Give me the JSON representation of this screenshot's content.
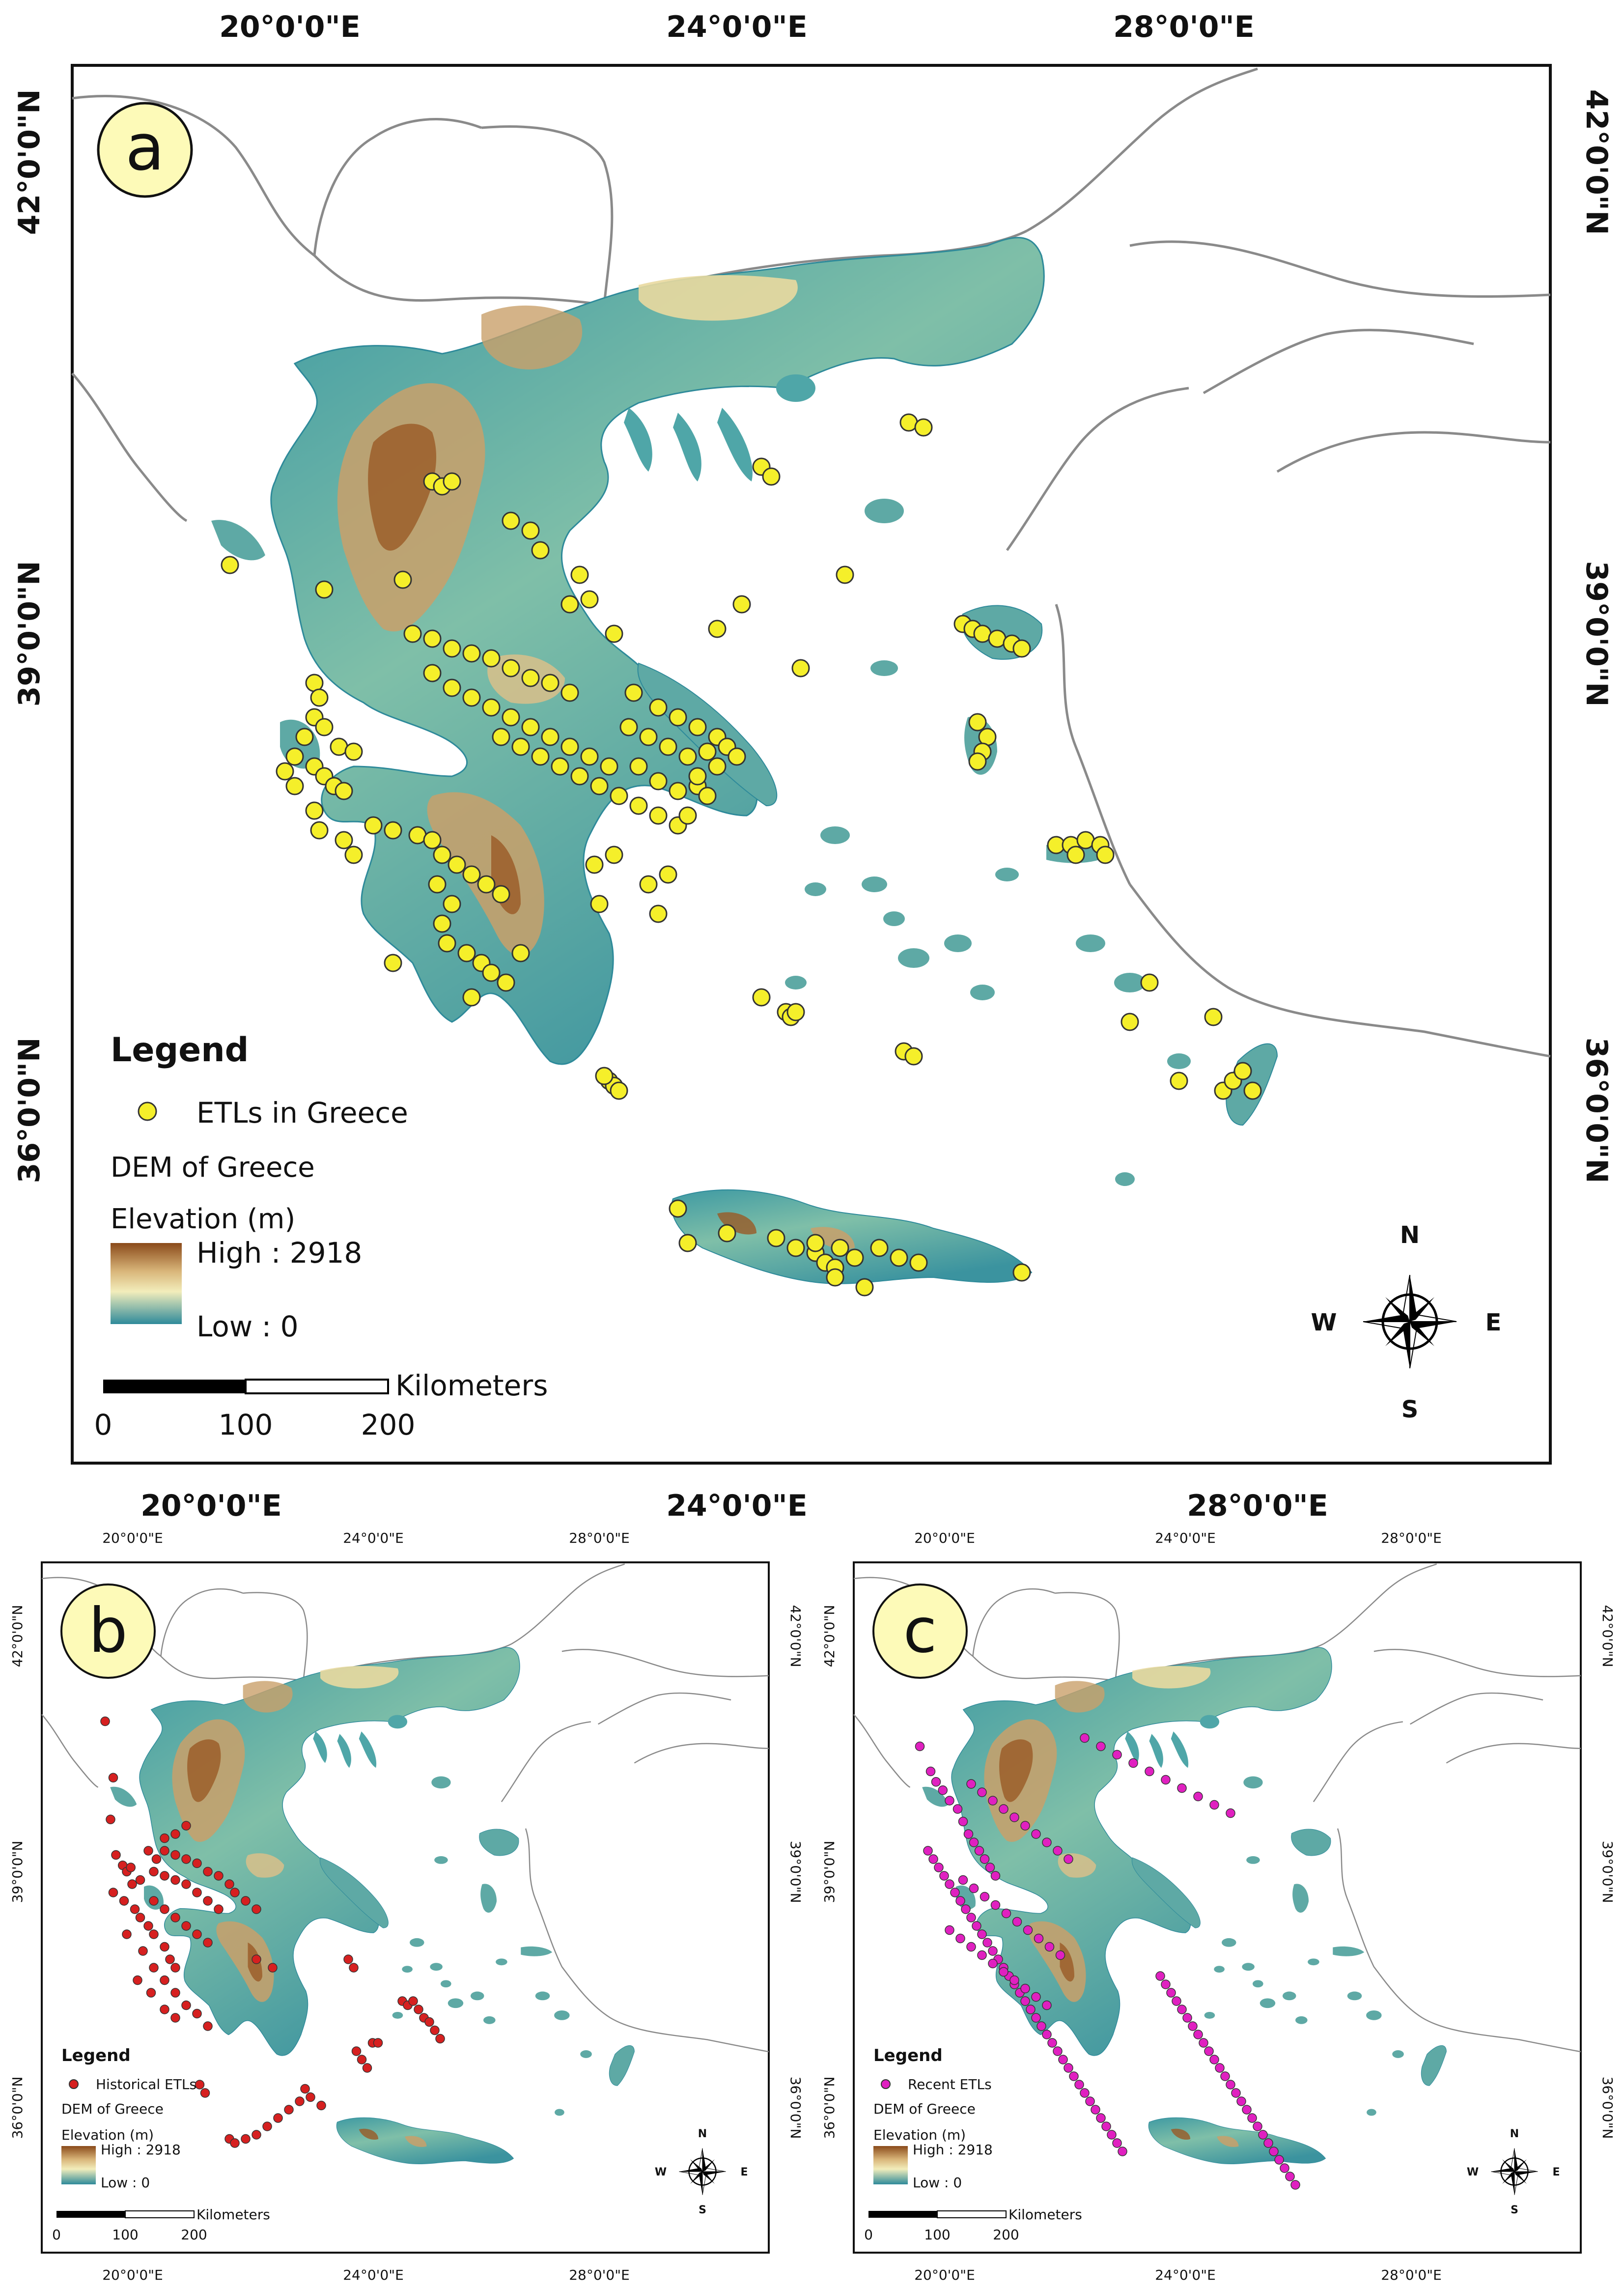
{
  "panels": [
    {
      "id": "a",
      "label": "a",
      "axes": {
        "top": [
          "20°0'0\"E",
          "24°0'0\"E",
          "28°0'0\"E"
        ],
        "bottom": [
          "20°0'0\"E",
          "24°0'0\"E",
          "28°0'0\"E"
        ],
        "left": [
          "42°0'0\"N",
          "39°0'0\"N",
          "36°0'0\"N"
        ],
        "right": [
          "42°0'0\"N",
          "39°0'0\"N",
          "36°0'0\"N"
        ]
      },
      "legend": {
        "title": "Legend",
        "points_label": "ETLs in Greece",
        "points_color": "#f5ef2a",
        "dem_label": "DEM of Greece",
        "elevation_label": "Elevation (m)",
        "high_label": "High : 2918",
        "low_label": "Low : 0"
      },
      "scalebar": {
        "units": "Kilometers",
        "ticks": [
          "0",
          "100",
          "200"
        ]
      },
      "compass": {
        "n": "N",
        "s": "S",
        "e": "E",
        "w": "W"
      }
    },
    {
      "id": "b",
      "label": "b",
      "axes": {
        "top": [
          "20°0'0\"E",
          "24°0'0\"E",
          "28°0'0\"E"
        ],
        "bottom": [
          "20°0'0\"E",
          "24°0'0\"E",
          "28°0'0\"E"
        ],
        "left": [
          "42°0'0\"N",
          "39°0'0\"N",
          "36°0'0\"N"
        ],
        "right": [
          "42°0'0\"N",
          "39°0'0\"N",
          "36°0'0\"N"
        ]
      },
      "legend": {
        "title": "Legend",
        "points_label": "Historical ETLs",
        "points_color": "#d62020",
        "dem_label": "DEM of Greece",
        "elevation_label": "Elevation (m)",
        "high_label": "High : 2918",
        "low_label": "Low : 0"
      },
      "scalebar": {
        "units": "Kilometers",
        "ticks": [
          "0",
          "100",
          "200"
        ]
      },
      "compass": {
        "n": "N",
        "s": "S",
        "e": "E",
        "w": "W"
      }
    },
    {
      "id": "c",
      "label": "c",
      "axes": {
        "top": [
          "20°0'0\"E",
          "24°0'0\"E",
          "28°0'0\"E"
        ],
        "bottom": [
          "20°0'0\"E",
          "24°0'0\"E",
          "28°0'0\"E"
        ],
        "left": [
          "42°0'0\"N",
          "39°0'0\"N",
          "36°0'0\"N"
        ],
        "right": [
          "42°0'0\"N",
          "39°0'0\"N",
          "36°0'0\"N"
        ]
      },
      "legend": {
        "title": "Legend",
        "points_label": "Recent ETLs",
        "points_color": "#e020c0",
        "dem_label": "DEM of Greece",
        "elevation_label": "Elevation (m)",
        "high_label": "High : 2918",
        "low_label": "Low : 0"
      },
      "scalebar": {
        "units": "Kilometers",
        "ticks": [
          "0",
          "100",
          "200"
        ]
      },
      "compass": {
        "n": "N",
        "s": "S",
        "e": "E",
        "w": "W"
      }
    }
  ],
  "colors": {
    "dem_low": "#2e8a9a",
    "dem_mid": "#f2edbb",
    "dem_high": "#8a4a1a",
    "border": "#8a8a8a"
  }
}
